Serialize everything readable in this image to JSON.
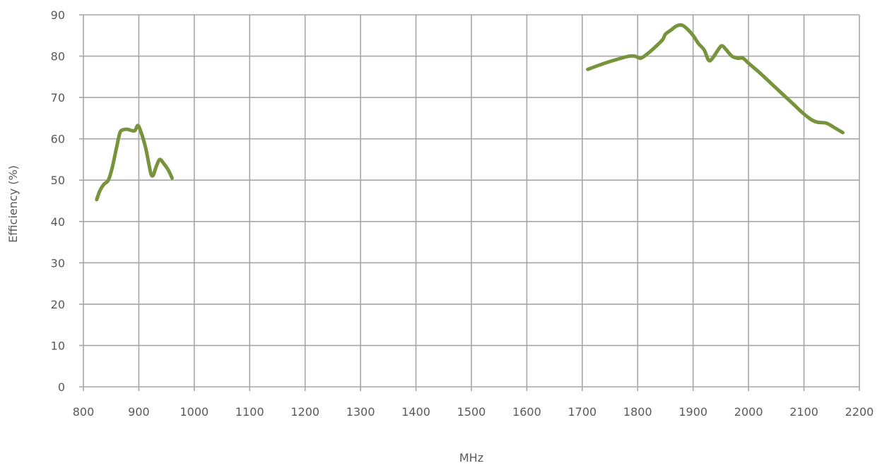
{
  "chart_data": {
    "type": "line",
    "title": "",
    "xlabel": "MHz",
    "ylabel": "Efficiency (%)",
    "xlim": [
      800,
      2200
    ],
    "ylim": [
      0,
      90
    ],
    "x_ticks": [
      "800",
      "900",
      "1000",
      "1100",
      "1200",
      "1300",
      "1400",
      "1500",
      "1600",
      "1700",
      "1800",
      "1900",
      "2000",
      "2100",
      "2200"
    ],
    "y_ticks": [
      "0",
      "10",
      "20",
      "30",
      "40",
      "50",
      "60",
      "70",
      "80",
      "90"
    ],
    "grid": true,
    "legend": "none",
    "color": "#77933c",
    "segments": [
      [
        [
          824,
          45.3
        ],
        [
          830,
          47.5
        ],
        [
          837,
          49
        ],
        [
          845,
          50
        ],
        [
          852,
          53
        ],
        [
          860,
          58
        ],
        [
          866,
          61.5
        ],
        [
          872,
          62.2
        ],
        [
          880,
          62.3
        ],
        [
          887,
          62
        ],
        [
          893,
          62
        ],
        [
          898,
          63.2
        ],
        [
          903,
          62
        ],
        [
          912,
          58
        ],
        [
          918,
          54
        ],
        [
          922,
          51.5
        ],
        [
          926,
          51.2
        ],
        [
          932,
          53.5
        ],
        [
          938,
          55
        ],
        [
          945,
          54
        ],
        [
          953,
          52.5
        ],
        [
          960,
          50.5
        ]
      ],
      [
        [
          1710,
          76.8
        ],
        [
          1730,
          77.8
        ],
        [
          1750,
          78.7
        ],
        [
          1770,
          79.5
        ],
        [
          1785,
          80
        ],
        [
          1795,
          80
        ],
        [
          1805,
          79.5
        ],
        [
          1815,
          80.3
        ],
        [
          1830,
          82
        ],
        [
          1845,
          84
        ],
        [
          1850,
          85.3
        ],
        [
          1860,
          86.3
        ],
        [
          1870,
          87.3
        ],
        [
          1880,
          87.5
        ],
        [
          1890,
          86.5
        ],
        [
          1900,
          85
        ],
        [
          1910,
          83
        ],
        [
          1920,
          81.5
        ],
        [
          1928,
          79
        ],
        [
          1935,
          79.5
        ],
        [
          1945,
          81.5
        ],
        [
          1952,
          82.5
        ],
        [
          1960,
          81.5
        ],
        [
          1970,
          80
        ],
        [
          1980,
          79.5
        ],
        [
          1990,
          79.5
        ],
        [
          2000,
          78.3
        ],
        [
          2020,
          76
        ],
        [
          2040,
          73.5
        ],
        [
          2060,
          71
        ],
        [
          2080,
          68.5
        ],
        [
          2100,
          66
        ],
        [
          2115,
          64.5
        ],
        [
          2125,
          64
        ],
        [
          2140,
          63.8
        ],
        [
          2155,
          62.7
        ],
        [
          2170,
          61.5
        ]
      ]
    ]
  }
}
